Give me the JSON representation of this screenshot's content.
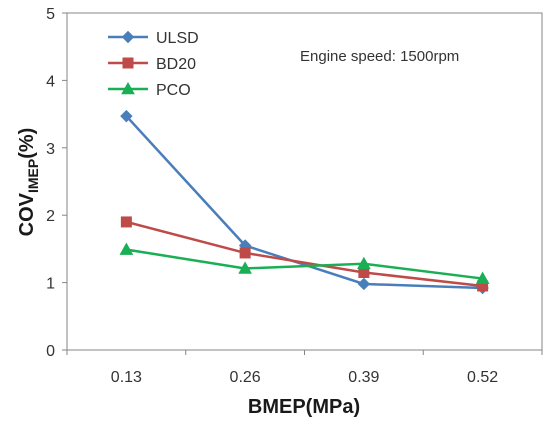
{
  "chart_data": {
    "type": "line",
    "categories": [
      "0.13",
      "0.26",
      "0.39",
      "0.52"
    ],
    "x": [
      0.13,
      0.26,
      0.39,
      0.52
    ],
    "series": [
      {
        "name": "ULSD",
        "values": [
          3.47,
          1.55,
          0.98,
          0.92
        ],
        "color": "#4a7ebb",
        "marker": "diamond"
      },
      {
        "name": "BD20",
        "values": [
          1.9,
          1.44,
          1.15,
          0.95
        ],
        "color": "#be4b48",
        "marker": "square"
      },
      {
        "name": "PCO",
        "values": [
          1.49,
          1.21,
          1.28,
          1.06
        ],
        "color": "#1aaf54",
        "marker": "triangle"
      }
    ],
    "y_ticks": [
      "0",
      "1",
      "2",
      "3",
      "4",
      "5"
    ],
    "ylim": [
      0,
      5
    ],
    "xlabel": "BMEP(MPa)",
    "ylabel": {
      "main": "COV",
      "sub": "IMEP",
      "suffix": "(%)"
    },
    "annotation": "Engine speed: 1500rpm",
    "legend_position": "top-left",
    "grid": false
  }
}
